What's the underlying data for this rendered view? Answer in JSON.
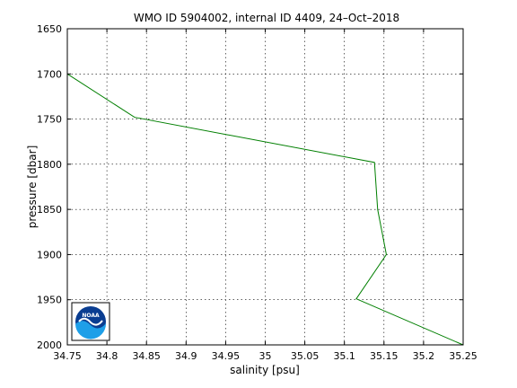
{
  "chart_data": {
    "type": "line",
    "title": "WMO ID 5904002, internal ID 4409, 24–Oct–2018",
    "xlabel": "salinity [psu]",
    "ylabel": "pressure [dbar]",
    "xlim": [
      34.75,
      35.25
    ],
    "ylim": [
      1650,
      2000
    ],
    "y_reversed": true,
    "grid": true,
    "x_ticks": [
      "34.75",
      "34.8",
      "34.85",
      "34.9",
      "34.95",
      "35",
      "35.05",
      "35.1",
      "35.15",
      "35.2",
      "35.25"
    ],
    "y_ticks": [
      "1650",
      "1700",
      "1750",
      "1800",
      "1850",
      "1900",
      "1950",
      "2000"
    ],
    "series": [
      {
        "color": "#007f00",
        "points": [
          {
            "x": 34.75,
            "y": 1700
          },
          {
            "x": 34.835,
            "y": 1748
          },
          {
            "x": 35.138,
            "y": 1798
          },
          {
            "x": 35.142,
            "y": 1850
          },
          {
            "x": 35.153,
            "y": 1900
          },
          {
            "x": 35.115,
            "y": 1949
          },
          {
            "x": 35.25,
            "y": 2000
          }
        ]
      }
    ]
  },
  "logo": {
    "text": "NOAA",
    "icon": "noaa-logo-icon"
  }
}
